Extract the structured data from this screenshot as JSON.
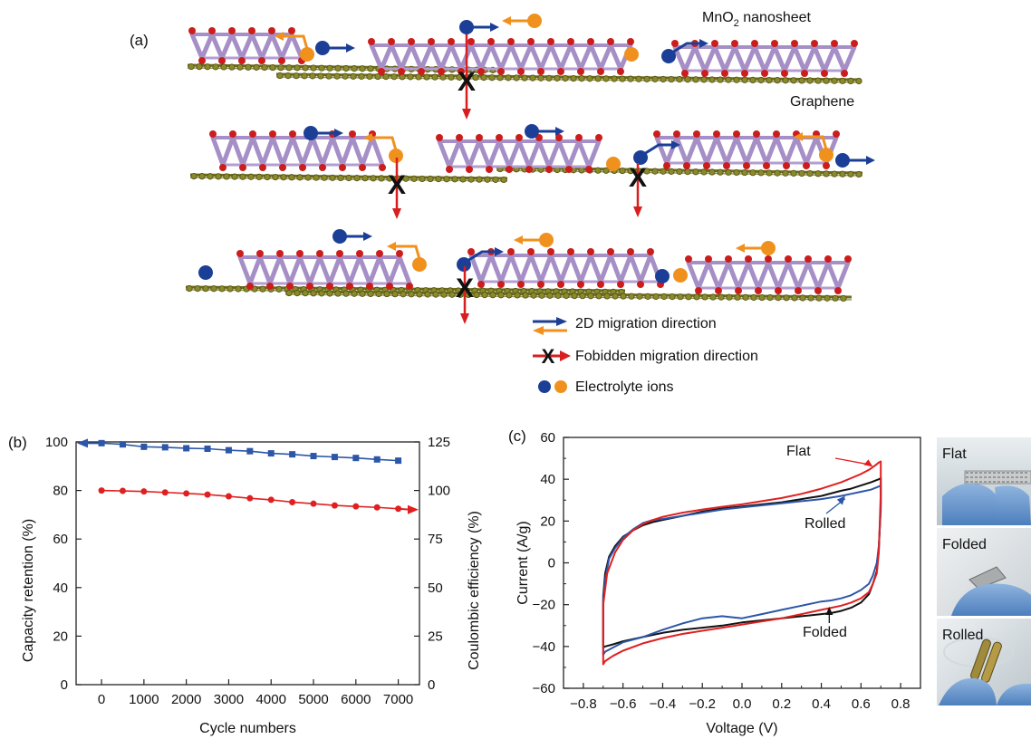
{
  "panel_a": {
    "label": "(a)",
    "nanosheet_label_prefix": "MnO",
    "nanosheet_label_sub": "2",
    "nanosheet_label_suffix": " nanosheet",
    "graphene_label": "Graphene",
    "legend": {
      "migration": "2D migration direction",
      "forbidden": "Fobidden migration direction",
      "ions": "Electrolyte ions"
    }
  },
  "photos": {
    "flat": "Flat",
    "folded": "Folded",
    "rolled": "Rolled"
  },
  "colors": {
    "ion_blue": "#1b3f96",
    "ion_orange": "#f0911d",
    "forbidden_red": "#d81e1e",
    "graphene": "#6f6e1c",
    "mn_atom": "#9e86c0",
    "o_atom": "#cc1d1d",
    "series_blue": "#2c56a8",
    "series_red": "#e02020",
    "series_black": "#111111"
  },
  "chart_data": [
    {
      "panel": "(b)",
      "type": "line",
      "xlabel": "Cycle numbers",
      "ylabel": "Capacity retention (%)",
      "y2label": "Coulombic efficiency (%)",
      "xlim": [
        -600,
        7500
      ],
      "ylim": [
        0,
        100
      ],
      "y2lim": [
        0,
        125
      ],
      "xticks": [
        0,
        1000,
        2000,
        3000,
        4000,
        5000,
        6000,
        7000
      ],
      "yticks": [
        0,
        20,
        40,
        60,
        80,
        100
      ],
      "y2ticks": [
        0,
        25,
        50,
        75,
        100,
        125
      ],
      "x": [
        0,
        500,
        1000,
        1500,
        2000,
        2500,
        3000,
        3500,
        4000,
        4500,
        5000,
        5500,
        6000,
        6500,
        7000
      ],
      "series": [
        {
          "axis": "left",
          "color": "#2c56a8",
          "marker": "square",
          "arrow": "left",
          "values": [
            99.5,
            99.0,
            98.0,
            97.8,
            97.4,
            97.2,
            96.6,
            96.2,
            95.3,
            94.9,
            94.2,
            93.8,
            93.4,
            92.8,
            92.3
          ]
        },
        {
          "axis": "right",
          "color": "#e02020",
          "marker": "circle",
          "arrow": "right",
          "values": [
            100.0,
            99.8,
            99.5,
            99.0,
            98.5,
            97.9,
            97.0,
            96.0,
            95.2,
            94.0,
            93.2,
            92.3,
            91.8,
            91.3,
            90.6
          ]
        }
      ]
    },
    {
      "panel": "(c)",
      "type": "line",
      "xlabel": "Voltage (V)",
      "ylabel": "Current (A/g)",
      "xlim": [
        -0.9,
        0.9
      ],
      "ylim": [
        -60,
        60
      ],
      "xticks": [
        -0.8,
        -0.6,
        -0.4,
        -0.2,
        0.0,
        0.2,
        0.4,
        0.6,
        0.8
      ],
      "xtick_labels": [
        "−0.8",
        "−0.6",
        "−0.4",
        "−0.2",
        "0.0",
        "0.2",
        "0.4",
        "0.6",
        "0.8"
      ],
      "yticks": [
        -60,
        -40,
        -20,
        0,
        20,
        40,
        60
      ],
      "ytick_labels": [
        "−60",
        "−40",
        "−20",
        "0",
        "20",
        "40",
        "60"
      ],
      "series": [
        {
          "name": "Flat",
          "color": "#e02020",
          "x": [
            -0.7,
            -0.68,
            -0.64,
            -0.6,
            -0.55,
            -0.5,
            -0.45,
            -0.4,
            -0.3,
            -0.2,
            -0.1,
            0.0,
            0.1,
            0.2,
            0.3,
            0.4,
            0.5,
            0.55,
            0.6,
            0.64,
            0.67,
            0.69,
            0.7,
            0.7,
            0.69,
            0.68,
            0.66,
            0.64,
            0.6,
            0.55,
            0.5,
            0.45,
            0.4,
            0.3,
            0.2,
            0.1,
            0.0,
            -0.1,
            -0.2,
            -0.3,
            -0.4,
            -0.5,
            -0.6,
            -0.65,
            -0.69,
            -0.7,
            -0.7
          ],
          "y": [
            -20.0,
            -5.0,
            5.0,
            11.0,
            15.5,
            18.5,
            20.5,
            22.0,
            24.0,
            25.5,
            26.8,
            28.0,
            29.5,
            31.0,
            33.0,
            35.5,
            38.5,
            40.5,
            42.5,
            44.5,
            46.5,
            48.0,
            48.5,
            34.0,
            5.0,
            -5.0,
            -10.0,
            -14.0,
            -17.0,
            -19.0,
            -20.5,
            -21.5,
            -22.5,
            -24.5,
            -26.5,
            -28.0,
            -29.5,
            -31.0,
            -32.5,
            -34.0,
            -36.0,
            -38.5,
            -42.0,
            -44.5,
            -47.0,
            -48.5,
            -20.0
          ]
        },
        {
          "name": "Rolled",
          "color": "#2c56a8",
          "x": [
            -0.7,
            -0.69,
            -0.67,
            -0.64,
            -0.6,
            -0.55,
            -0.5,
            -0.45,
            -0.4,
            -0.3,
            -0.2,
            -0.1,
            0.0,
            0.1,
            0.2,
            0.3,
            0.4,
            0.5,
            0.55,
            0.6,
            0.65,
            0.69,
            0.7,
            0.7,
            0.69,
            0.68,
            0.66,
            0.64,
            0.6,
            0.55,
            0.5,
            0.45,
            0.4,
            0.3,
            0.2,
            0.1,
            0.0,
            -0.1,
            -0.2,
            -0.3,
            -0.4,
            -0.5,
            -0.6,
            -0.65,
            -0.69,
            -0.7,
            -0.7
          ],
          "y": [
            -18.0,
            -8.0,
            2.0,
            7.0,
            12.0,
            16.0,
            19.0,
            20.5,
            21.0,
            22.5,
            24.0,
            25.5,
            26.5,
            27.5,
            28.5,
            29.5,
            30.5,
            32.0,
            33.0,
            34.0,
            35.0,
            36.5,
            37.0,
            25.0,
            8.0,
            0.0,
            -6.0,
            -10.0,
            -13.0,
            -15.5,
            -17.0,
            -18.0,
            -18.5,
            -20.5,
            -22.5,
            -24.5,
            -26.5,
            -25.5,
            -26.5,
            -29.0,
            -32.0,
            -35.5,
            -38.0,
            -40.5,
            -42.5,
            -44.0,
            -18.0
          ]
        },
        {
          "name": "Folded",
          "color": "#111111",
          "x": [
            -0.7,
            -0.69,
            -0.67,
            -0.64,
            -0.6,
            -0.55,
            -0.5,
            -0.45,
            -0.4,
            -0.3,
            -0.2,
            -0.1,
            0.0,
            0.1,
            0.2,
            0.3,
            0.4,
            0.5,
            0.55,
            0.6,
            0.65,
            0.69,
            0.7,
            0.7,
            0.69,
            0.68,
            0.66,
            0.64,
            0.6,
            0.55,
            0.5,
            0.45,
            0.4,
            0.3,
            0.2,
            0.1,
            0.0,
            -0.1,
            -0.2,
            -0.3,
            -0.4,
            -0.5,
            -0.6,
            -0.65,
            -0.69,
            -0.7,
            -0.7
          ],
          "y": [
            -16.0,
            -5.0,
            3.0,
            8.0,
            12.5,
            15.5,
            18.0,
            19.5,
            20.5,
            22.5,
            24.5,
            26.0,
            27.0,
            28.0,
            29.0,
            30.5,
            32.0,
            34.5,
            35.5,
            37.0,
            38.5,
            40.0,
            40.5,
            28.0,
            6.0,
            -4.0,
            -10.0,
            -15.0,
            -19.0,
            -21.5,
            -23.0,
            -24.0,
            -24.5,
            -25.5,
            -26.5,
            -27.5,
            -28.5,
            -30.0,
            -31.0,
            -32.0,
            -33.5,
            -35.5,
            -37.5,
            -39.0,
            -40.0,
            -40.5,
            -16.0
          ]
        }
      ]
    }
  ]
}
